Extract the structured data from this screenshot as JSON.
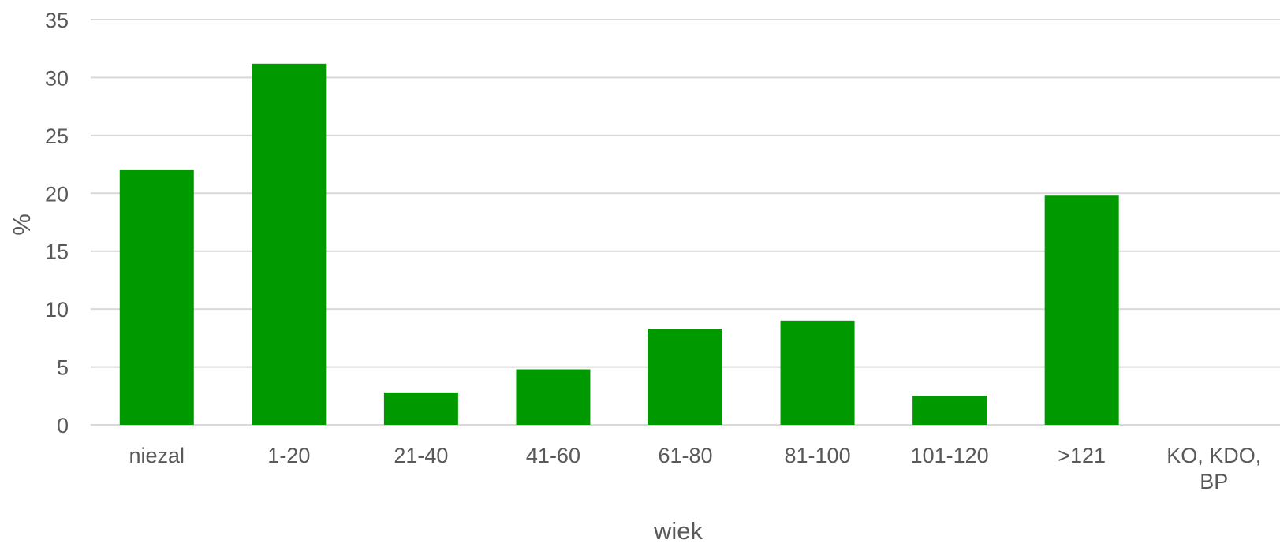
{
  "chart_data": {
    "type": "bar",
    "categories": [
      "niezal",
      "1-20",
      "21-40",
      "41-60",
      "61-80",
      "81-100",
      "101-120",
      ">121",
      "KO, KDO, BP"
    ],
    "values": [
      22,
      31.2,
      2.8,
      4.8,
      8.3,
      9.0,
      2.5,
      19.8,
      0
    ],
    "xlabel": "wiek",
    "ylabel": "%",
    "ylim": [
      0,
      35
    ],
    "yticks": [
      0,
      5,
      10,
      15,
      20,
      25,
      30,
      35
    ],
    "grid": true,
    "legend": "none",
    "bar_color": "#009900",
    "grid_color": "#d9d9d9",
    "text_color": "#595959"
  }
}
